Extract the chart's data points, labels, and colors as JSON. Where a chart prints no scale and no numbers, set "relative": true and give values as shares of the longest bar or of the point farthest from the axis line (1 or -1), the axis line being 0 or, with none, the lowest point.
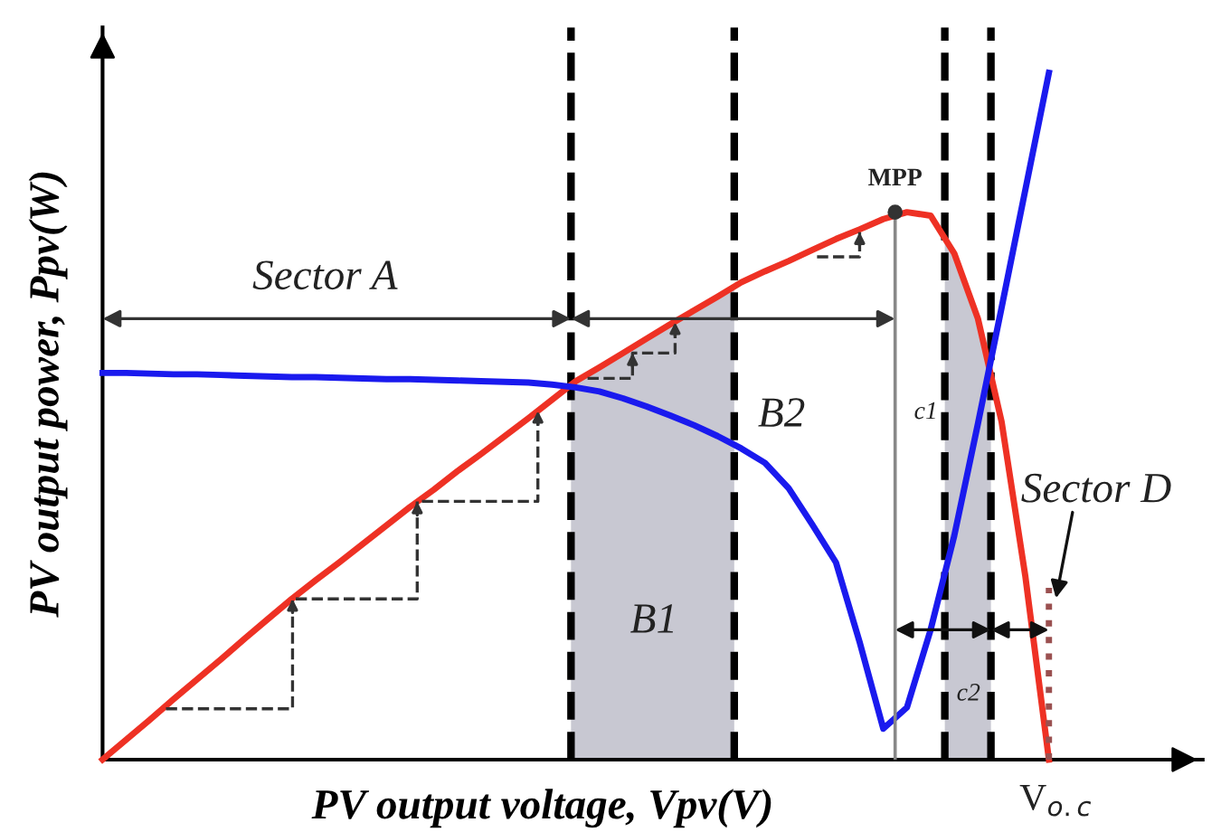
{
  "chart_data": {
    "type": "line",
    "relative": true,
    "xlabel": "PV output voltage, Vpv(V)",
    "ylabel": "PV output power, Ppv(W)",
    "categories": [
      null,
      null,
      null,
      null,
      null,
      null,
      null,
      null,
      null,
      null,
      null,
      null,
      null,
      null,
      null,
      null,
      null,
      null,
      null,
      null,
      null,
      null,
      null,
      null,
      null,
      null,
      null,
      null,
      null,
      null,
      null,
      null,
      null,
      null,
      null,
      null,
      null,
      null,
      null,
      null,
      null
    ],
    "series": [
      {
        "color": "#ee3124",
        "values": [
          0,
          0.029,
          0.058,
          0.088,
          0.117,
          0.146,
          0.176,
          0.205,
          0.234,
          0.261,
          0.287,
          0.314,
          0.341,
          0.368,
          0.393,
          0.42,
          0.445,
          0.471,
          0.497,
          0.524,
          0.551,
          0.571,
          0.592,
          0.613,
          0.634,
          0.654,
          0.674,
          0.695,
          0.711,
          0.726,
          0.742,
          0.758,
          0.772,
          0.787,
          0.797,
          0.792,
          0.737,
          0.642,
          0.492,
          0.268,
          0
        ]
      },
      {
        "color": "#1a1aee",
        "values": [
          0.563,
          0.563,
          0.562,
          0.561,
          0.561,
          0.56,
          0.559,
          0.558,
          0.557,
          0.557,
          0.556,
          0.555,
          0.554,
          0.554,
          0.553,
          0.552,
          0.551,
          0.55,
          0.549,
          0.546,
          0.542,
          0.536,
          0.526,
          0.514,
          0.501,
          0.487,
          0.471,
          0.453,
          0.432,
          0.395,
          0.342,
          0.287,
          0.171,
          0.045,
          0.076,
          0.189,
          0.326,
          0.489,
          0.658,
          0.829,
          1.0
        ]
      }
    ],
    "annotations": [
      "Sector A",
      "B1",
      "B2",
      "c1",
      "c2",
      "Sector D",
      "MPP",
      "V$_{o.c}$"
    ]
  }
}
